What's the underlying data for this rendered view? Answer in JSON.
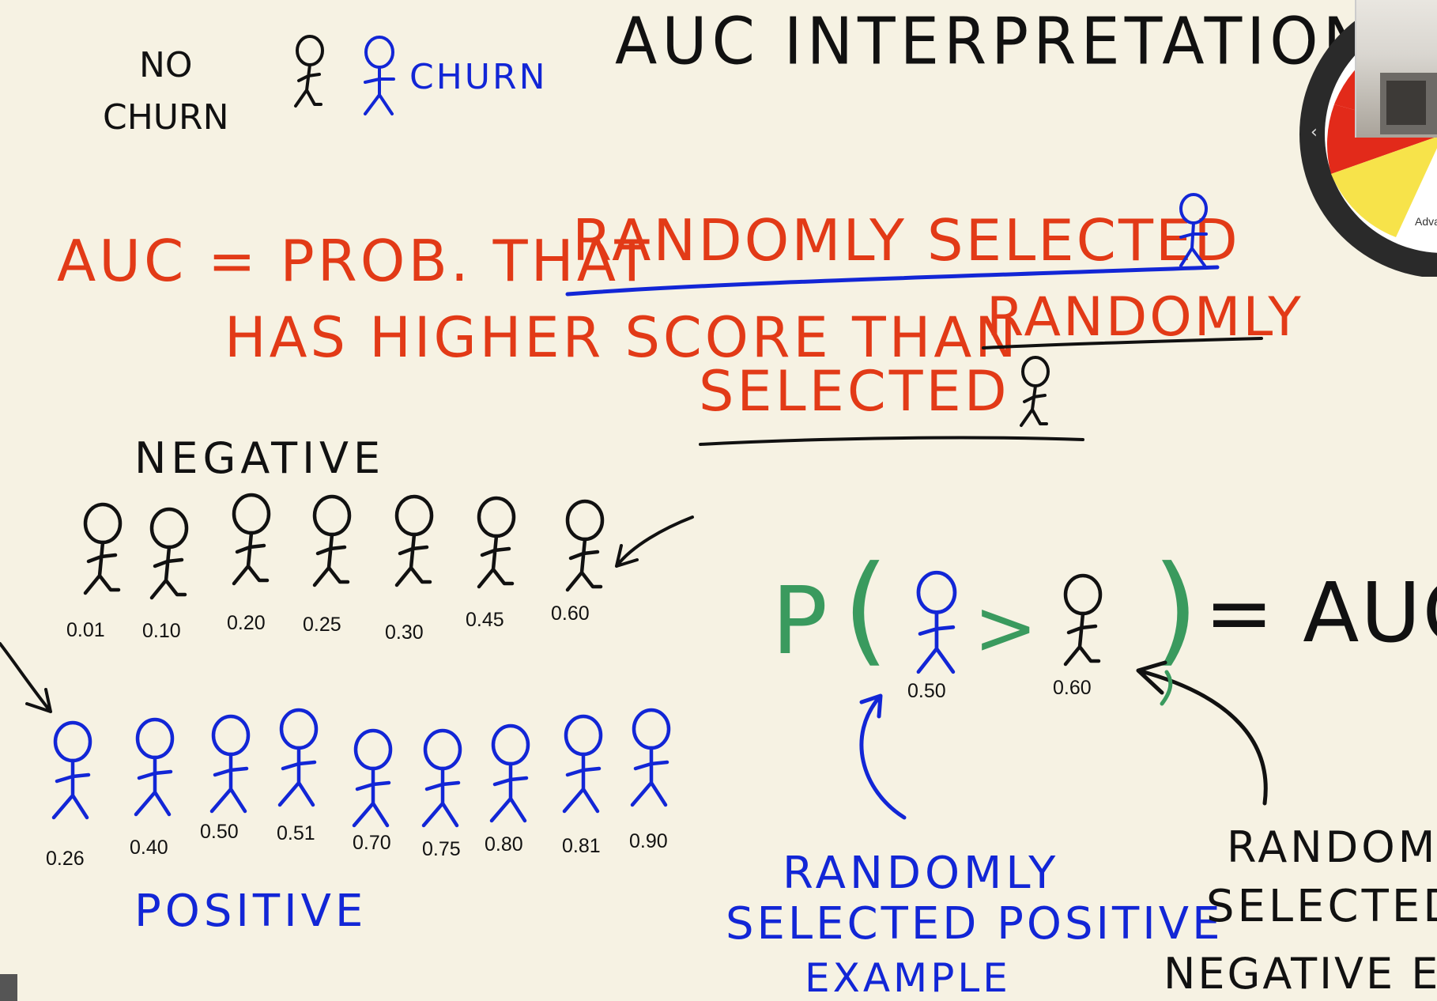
{
  "title": "AUC INTERPRETATION",
  "legend": {
    "no_churn": "NO\nCHURN",
    "churn": "CHURN"
  },
  "definition": {
    "line1": "AUC = PROB. THAT",
    "line1_emph": "RANDOMLY SELECTED",
    "line2": "HAS HIGHER SCORE THAN",
    "line2_emph": "RANDOMLY",
    "line3": "SELECTED"
  },
  "negative_label": "NEGATIVE",
  "positive_label": "POSITIVE",
  "negative_scores": [
    "0.01",
    "0.10",
    "0.20",
    "0.25",
    "0.30",
    "0.45",
    "0.60"
  ],
  "positive_scores": [
    "0.26",
    "0.40",
    "0.50",
    "0.51",
    "0.70",
    "0.75",
    "0.80",
    "0.81",
    "0.90"
  ],
  "formula": {
    "p": "P",
    "open": "(",
    "gt": ">",
    "close": ")",
    "equals": "= AUC",
    "positive_score": "0.50",
    "negative_score": "0.60"
  },
  "positive_annotation": {
    "line1": "RANDOMLY",
    "line2": "SELECTED POSITIVE",
    "line3": "EXAMPLE"
  },
  "negative_annotation": {
    "line1": "RANDOMLY",
    "line2": "SELECTED",
    "line3": "NEGATIVE EX"
  },
  "widget": {
    "label": "Adva"
  },
  "colors": {
    "background": "#f6f2e3",
    "red": "#e23a17",
    "black": "#111111",
    "blue": "#1226d6",
    "green": "#3a9a5e"
  }
}
